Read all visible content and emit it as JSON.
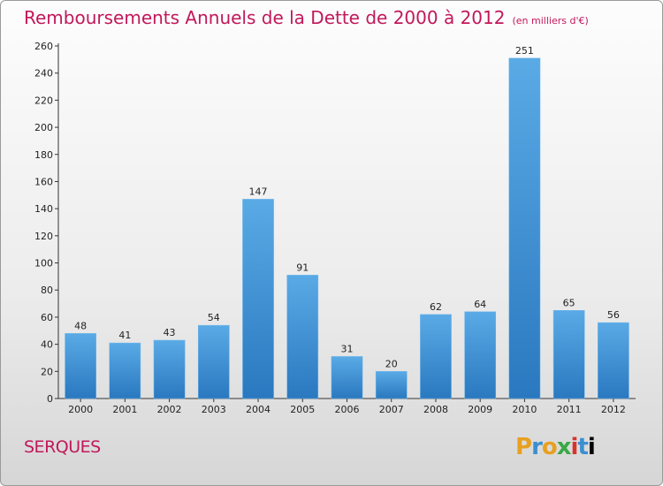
{
  "header": {
    "title": "Remboursements Annuels de la Dette de 2000 à 2012",
    "unit": "(en milliers d'€)"
  },
  "footer": {
    "commune": "SERQUES",
    "logo": "Proxiti"
  },
  "colors": {
    "title": "#c2185b",
    "bar_light": "#5aaae6",
    "bar_dark": "#2a78bf"
  },
  "chart_data": {
    "type": "bar",
    "title": "Remboursements Annuels de la Dette de 2000 à 2012",
    "subtitle": "(en milliers d'€)",
    "categories": [
      "2000",
      "2001",
      "2002",
      "2003",
      "2004",
      "2005",
      "2006",
      "2007",
      "2008",
      "2009",
      "2010",
      "2011",
      "2012"
    ],
    "values": [
      48,
      41,
      43,
      54,
      147,
      91,
      31,
      20,
      62,
      64,
      251,
      65,
      56
    ],
    "ylim": [
      0,
      260
    ],
    "yticks": [
      0,
      20,
      40,
      60,
      80,
      100,
      120,
      140,
      160,
      180,
      200,
      220,
      240,
      260
    ],
    "grid": false,
    "legend": "none"
  }
}
